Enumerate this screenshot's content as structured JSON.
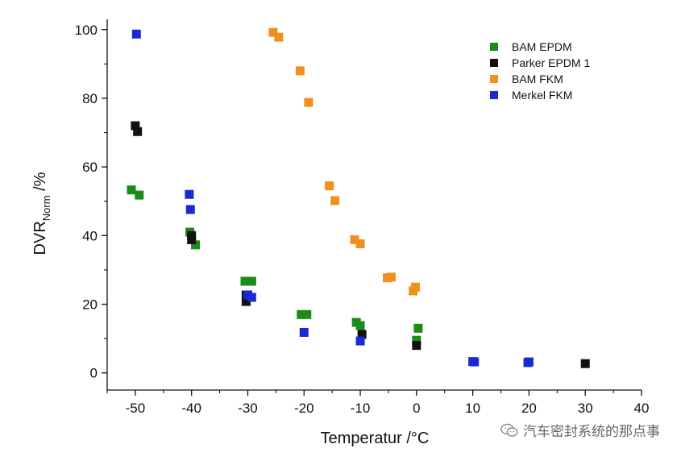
{
  "chart_data": {
    "type": "scatter",
    "xlabel": "Temperatur /°C",
    "ylabel_main": "DVR",
    "ylabel_sub": "Norm",
    "ylabel_suffix": " /%",
    "xlim": [
      -55,
      40
    ],
    "ylim": [
      -5,
      103
    ],
    "x_ticks": [
      -50,
      -40,
      -30,
      -20,
      -10,
      0,
      10,
      20,
      30,
      40
    ],
    "y_ticks": [
      0,
      20,
      40,
      60,
      80,
      100
    ],
    "x_tick_labels": [
      "-50",
      "-40",
      "-30",
      "-20",
      "-10",
      "0",
      "10",
      "20",
      "30",
      "40"
    ],
    "y_tick_labels": [
      "0",
      "20",
      "40",
      "60",
      "80",
      "100"
    ],
    "legend_position": "top-right",
    "grid": false,
    "series": [
      {
        "name": "BAM EPDM",
        "color": "#1a8c1a",
        "points": [
          [
            -50.7,
            53.3
          ],
          [
            -49.3,
            51.8
          ],
          [
            -40.3,
            41.0
          ],
          [
            -39.3,
            37.3
          ],
          [
            -30.5,
            26.7
          ],
          [
            -29.3,
            26.7
          ],
          [
            -20.5,
            17.0
          ],
          [
            -19.5,
            17.0
          ],
          [
            -10.7,
            14.7
          ],
          [
            -10.0,
            13.8
          ],
          [
            0.3,
            13.0
          ],
          [
            0.0,
            9.5
          ]
        ]
      },
      {
        "name": "Parker EPDM 1",
        "color": "#111111",
        "points": [
          [
            -50.0,
            72.0
          ],
          [
            -49.6,
            70.3
          ],
          [
            -40.0,
            40.0
          ],
          [
            -40.0,
            38.8
          ],
          [
            -30.3,
            22.7
          ],
          [
            -30.3,
            20.8
          ],
          [
            -9.7,
            11.2
          ],
          [
            0.0,
            8.0
          ],
          [
            30.0,
            2.7
          ]
        ]
      },
      {
        "name": "BAM FKM",
        "color": "#f0901e",
        "points": [
          [
            -25.5,
            99.2
          ],
          [
            -24.5,
            97.8
          ],
          [
            -20.7,
            88.0
          ],
          [
            -19.2,
            78.8
          ],
          [
            -15.5,
            54.5
          ],
          [
            -14.5,
            50.2
          ],
          [
            -11.0,
            38.8
          ],
          [
            -10.0,
            37.6
          ],
          [
            -5.2,
            27.7
          ],
          [
            -4.5,
            27.9
          ],
          [
            -0.6,
            23.9
          ],
          [
            -0.2,
            25.0
          ]
        ]
      },
      {
        "name": "Merkel FKM",
        "color": "#1a2ad0",
        "points": [
          [
            -49.8,
            98.7
          ],
          [
            -40.4,
            52.0
          ],
          [
            -40.2,
            47.6
          ],
          [
            -30.0,
            22.7
          ],
          [
            -29.3,
            22.0
          ],
          [
            -20.0,
            11.8
          ],
          [
            -10.0,
            9.3
          ],
          [
            10.0,
            3.3
          ],
          [
            10.3,
            3.2
          ],
          [
            19.8,
            3.0
          ],
          [
            20.0,
            3.2
          ]
        ]
      }
    ]
  },
  "watermark": {
    "text": "汽车密封系统的那点事",
    "icon": "wechat-icon"
  }
}
